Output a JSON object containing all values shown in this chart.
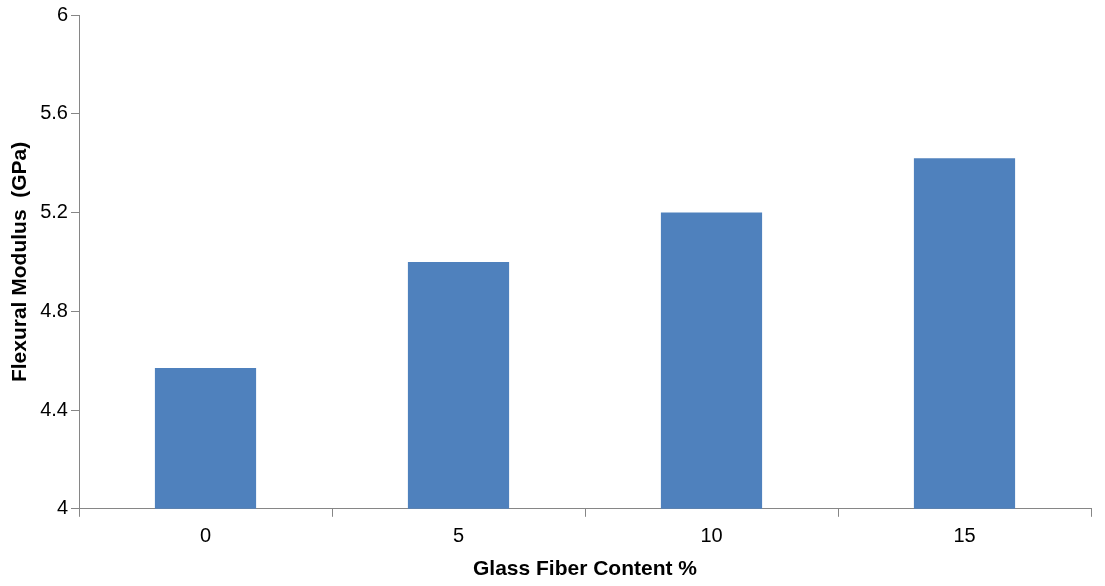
{
  "chart_data": {
    "type": "bar",
    "xlabel": "Glass Fiber Content %",
    "ylabel": "Flexural Modulus  (GPa)",
    "categories": [
      "0",
      "5",
      "10",
      "15"
    ],
    "values": [
      4.57,
      5.0,
      5.2,
      5.42
    ],
    "color": "#4f81bd",
    "ylim": [
      4,
      6
    ],
    "yticks": [
      4,
      4.4,
      4.8,
      5.2,
      5.6,
      6
    ],
    "grid": false,
    "legend": false
  }
}
